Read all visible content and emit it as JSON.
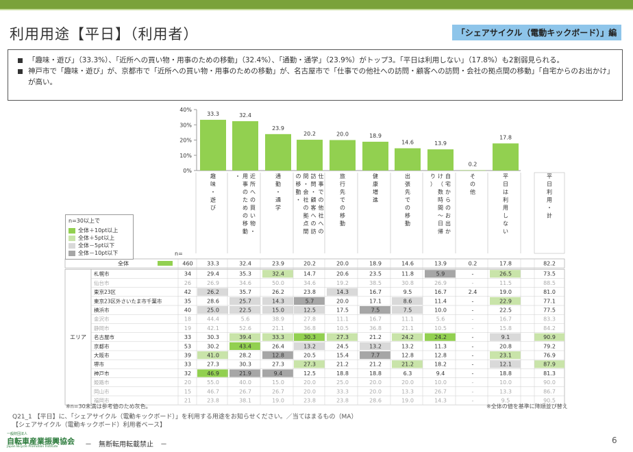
{
  "header": {
    "title": "利用用途【平日】（利用者）",
    "badge": "「シェアサイクル（電動キックボード）」編"
  },
  "summary": [
    "「趣味・遊び」（33.3%）、「近所への買い物・用事のための移動」（32.4%）、「通勤・通学」（23.9%）がトップ3。「平日は利用しない」（17.8%）も2割弱見られる。",
    "神戸市で「趣味・遊び」が、京都市で「近所への買い物・用事のための移動」が、名古屋市で「仕事での他社への訪問・顧客への訪問・会社の拠点間の移動」「自宅からのお出かけ」が高い。"
  ],
  "legend": {
    "title": "n=30以上で",
    "items": [
      {
        "label": "全体＋10pt以上",
        "color": "#92d050"
      },
      {
        "label": "全体＋5pt以上",
        "color": "#c9e4a9"
      },
      {
        "label": "全体－5pt以下",
        "color": "#d9d9d9"
      },
      {
        "label": "全体－10pt以下",
        "color": "#a6a6a6"
      }
    ]
  },
  "n_label": "n=",
  "chart_data": {
    "type": "bar",
    "categories": [
      "趣味・遊び",
      "近所への買い物・用事のための移動・",
      "通勤・通学",
      "仕事での他社への訪問・顧客への訪問・会社の拠点間の移動・",
      "旅行先での移動",
      "健康増進",
      "出張先での移動",
      "自宅からのお出かけ（数時間～日帰り）",
      "その他",
      "平日は利用しない",
      "平日利用・計"
    ],
    "values": [
      33.3,
      32.4,
      23.9,
      20.2,
      20.0,
      18.9,
      14.6,
      13.9,
      0.2,
      17.8,
      null
    ],
    "value_labels": [
      "33.3",
      "32.4",
      "23.9",
      "20.2",
      "20.0",
      "18.9",
      "14.6",
      "13.9",
      "0.2",
      "17.8",
      ""
    ],
    "ylim": [
      0,
      40
    ],
    "yticks": [
      "0%",
      "10%",
      "20%",
      "30%",
      "40%"
    ],
    "bar_color": "#92d050"
  },
  "table": {
    "area_label": "エリア",
    "total": {
      "name": "全体",
      "n": "460",
      "values": [
        "33.3",
        "32.4",
        "23.9",
        "20.2",
        "20.0",
        "18.9",
        "14.6",
        "13.9",
        "0.2",
        "17.8",
        "82.2"
      ]
    },
    "rows": [
      {
        "name": "札幌市",
        "n": "34",
        "values": [
          "29.4",
          "35.3",
          "32.4",
          "14.7",
          "20.6",
          "23.5",
          "11.8",
          "5.9",
          "-",
          "26.5",
          "73.5"
        ],
        "shade": [
          "",
          "",
          "p5",
          "",
          "",
          "",
          "",
          "m10",
          "",
          "p5",
          ""
        ],
        "grey": false
      },
      {
        "name": "仙台市",
        "n": "26",
        "values": [
          "26.9",
          "34.6",
          "50.0",
          "34.6",
          "19.2",
          "38.5",
          "30.8",
          "26.9",
          "-",
          "11.5",
          "88.5"
        ],
        "shade": [
          "",
          "",
          "",
          "",
          "",
          "",
          "",
          "",
          "",
          "",
          ""
        ],
        "grey": true
      },
      {
        "name": "東京23区",
        "n": "42",
        "values": [
          "26.2",
          "35.7",
          "26.2",
          "23.8",
          "14.3",
          "16.7",
          "9.5",
          "16.7",
          "2.4",
          "19.0",
          "81.0"
        ],
        "shade": [
          "m5",
          "",
          "",
          "",
          "m5",
          "",
          "",
          "",
          "",
          "",
          ""
        ],
        "grey": false
      },
      {
        "name": "東京23区外さいたま市千葉市",
        "n": "35",
        "values": [
          "28.6",
          "25.7",
          "14.3",
          "5.7",
          "20.0",
          "17.1",
          "8.6",
          "11.4",
          "-",
          "22.9",
          "77.1"
        ],
        "shade": [
          "",
          "m5",
          "m5",
          "m10",
          "",
          "",
          "m5",
          "",
          "",
          "p5",
          ""
        ],
        "grey": false
      },
      {
        "name": "横浜市",
        "n": "40",
        "values": [
          "25.0",
          "22.5",
          "15.0",
          "12.5",
          "17.5",
          "7.5",
          "7.5",
          "10.0",
          "-",
          "22.5",
          "77.5"
        ],
        "shade": [
          "m5",
          "m5",
          "m5",
          "m5",
          "",
          "m10",
          "m5",
          "",
          "",
          "",
          ""
        ],
        "grey": false
      },
      {
        "name": "金沢市",
        "n": "18",
        "values": [
          "44.4",
          "5.6",
          "38.9",
          "27.8",
          "11.1",
          "16.7",
          "11.1",
          "5.6",
          "-",
          "16.7",
          "83.3"
        ],
        "shade": [
          "",
          "",
          "",
          "",
          "",
          "",
          "",
          "",
          "",
          "",
          ""
        ],
        "grey": true
      },
      {
        "name": "静岡市",
        "n": "19",
        "values": [
          "42.1",
          "52.6",
          "21.1",
          "36.8",
          "10.5",
          "36.8",
          "21.1",
          "10.5",
          "-",
          "15.8",
          "84.2"
        ],
        "shade": [
          "",
          "",
          "",
          "",
          "",
          "",
          "",
          "",
          "",
          "",
          ""
        ],
        "grey": true
      },
      {
        "name": "名古屋市",
        "n": "33",
        "values": [
          "30.3",
          "39.4",
          "33.3",
          "30.3",
          "27.3",
          "21.2",
          "24.2",
          "24.2",
          "-",
          "9.1",
          "90.9"
        ],
        "shade": [
          "",
          "p5",
          "p5",
          "p10",
          "p5",
          "",
          "p5",
          "p10",
          "",
          "m5",
          "p5"
        ],
        "grey": false
      },
      {
        "name": "京都市",
        "n": "53",
        "values": [
          "30.2",
          "43.4",
          "26.4",
          "13.2",
          "24.5",
          "13.2",
          "13.2",
          "11.3",
          "-",
          "20.8",
          "79.2"
        ],
        "shade": [
          "",
          "p10",
          "",
          "m5",
          "",
          "m5",
          "",
          "",
          "",
          "",
          ""
        ],
        "grey": false
      },
      {
        "name": "大阪市",
        "n": "39",
        "values": [
          "41.0",
          "28.2",
          "12.8",
          "20.5",
          "15.4",
          "7.7",
          "12.8",
          "12.8",
          "-",
          "23.1",
          "76.9"
        ],
        "shade": [
          "p5",
          "",
          "m10",
          "",
          "",
          "m10",
          "",
          "",
          "",
          "p5",
          ""
        ],
        "grey": false
      },
      {
        "name": "堺市",
        "n": "33",
        "values": [
          "27.3",
          "30.3",
          "27.3",
          "27.3",
          "21.2",
          "21.2",
          "21.2",
          "18.2",
          "-",
          "12.1",
          "87.9"
        ],
        "shade": [
          "",
          "",
          "",
          "p5",
          "",
          "",
          "p5",
          "",
          "",
          "m5",
          "p5"
        ],
        "grey": false
      },
      {
        "name": "神戸市",
        "n": "32",
        "values": [
          "46.9",
          "21.9",
          "9.4",
          "12.5",
          "18.8",
          "18.8",
          "6.3",
          "9.4",
          "-",
          "18.8",
          "81.3"
        ],
        "shade": [
          "p10",
          "m10",
          "m10",
          "",
          "",
          "",
          "",
          "",
          "",
          "",
          ""
        ],
        "grey": false
      },
      {
        "name": "姫路市",
        "n": "20",
        "values": [
          "55.0",
          "40.0",
          "15.0",
          "20.0",
          "25.0",
          "20.0",
          "20.0",
          "10.0",
          "-",
          "10.0",
          "90.0"
        ],
        "shade": [
          "",
          "",
          "",
          "",
          "",
          "",
          "",
          "",
          "",
          "",
          ""
        ],
        "grey": true
      },
      {
        "name": "岡山市",
        "n": "15",
        "values": [
          "46.7",
          "26.7",
          "26.7",
          "20.0",
          "33.3",
          "20.0",
          "13.3",
          "26.7",
          "-",
          "13.3",
          "86.7"
        ],
        "shade": [
          "",
          "",
          "",
          "",
          "",
          "",
          "",
          "",
          "",
          "",
          ""
        ],
        "grey": true
      },
      {
        "name": "福岡市",
        "n": "21",
        "values": [
          "23.8",
          "38.1",
          "19.0",
          "23.8",
          "23.8",
          "28.6",
          "19.0",
          "14.3",
          "-",
          "9.5",
          "90.5"
        ],
        "shade": [
          "",
          "",
          "",
          "",
          "",
          "",
          "",
          "",
          "",
          "",
          ""
        ],
        "grey": true
      }
    ]
  },
  "notes": {
    "left": "※n=30未満は参考値のため灰色。",
    "right": "※全体の値を基準に降順並び替え",
    "question": "Q21_1 【平日】に、「シェアサイクル（電動キックボード）」を利用する用途をお知らせください。／当てはまるもの（MA）",
    "base": "【シェアサイクル（電動キックボード）利用者ベース】"
  },
  "footer": {
    "org_small": "一般財団法人",
    "org": "自転車産業振興協会",
    "org_en": "Japan Bicycle Promotion Institute",
    "center": "－　無断転用転載禁止　－",
    "page": "6"
  }
}
